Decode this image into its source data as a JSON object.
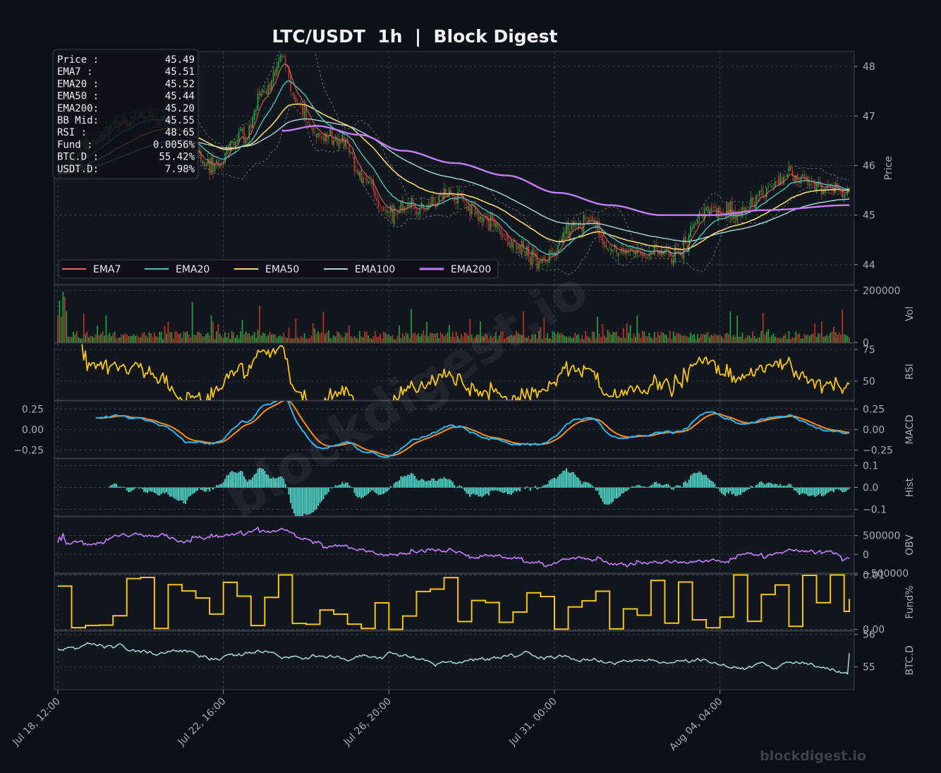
{
  "chart_data": {
    "type": "financial-multi-panel",
    "title": "LTC/USDT  1h  |  Block Digest",
    "watermark": "blockdigest.io",
    "footer": "blockdigest.io",
    "x_ticks": [
      "Jul 18, 12:00",
      "Jul 22, 16:00",
      "Jul 26, 20:00",
      "Jul 31, 00:00",
      "Aug 04, 04:00"
    ],
    "info_box": [
      {
        "label": "Price :",
        "value": "45.49"
      },
      {
        "label": "EMA7  :",
        "value": "45.51"
      },
      {
        "label": "EMA20 :",
        "value": "45.52"
      },
      {
        "label": "EMA50 :",
        "value": "45.44"
      },
      {
        "label": "EMA200:",
        "value": "45.20"
      },
      {
        "label": "BB Mid:",
        "value": "45.55"
      },
      {
        "label": "RSI   :",
        "value": "48.65"
      },
      {
        "label": "Fund  :",
        "value": "0.0056%"
      },
      {
        "label": "BTC.D :",
        "value": "55.42%"
      },
      {
        "label": "USDT.D:",
        "value": "7.98%"
      }
    ],
    "legend": [
      {
        "name": "EMA7",
        "color": "#e8676b"
      },
      {
        "name": "EMA20",
        "color": "#4fc3c0"
      },
      {
        "name": "EMA50",
        "color": "#f5d76e"
      },
      {
        "name": "EMA100",
        "color": "#a8d8dc"
      },
      {
        "name": "EMA200",
        "color": "#c77dff"
      }
    ],
    "panels": {
      "price": {
        "ylabel": "Price",
        "ylim": [
          43.6,
          48.3
        ],
        "ticks": [
          "44",
          "45",
          "46",
          "47",
          "48"
        ],
        "tick_values": [
          44,
          45,
          46,
          47,
          48
        ],
        "close_keypoints": [
          [
            0,
            45.9
          ],
          [
            15,
            46.4
          ],
          [
            40,
            46.9
          ],
          [
            60,
            47.0
          ],
          [
            75,
            46.3
          ],
          [
            90,
            46.0
          ],
          [
            108,
            46.6
          ],
          [
            120,
            47.5
          ],
          [
            130,
            48.1
          ],
          [
            140,
            47.2
          ],
          [
            150,
            46.6
          ],
          [
            165,
            46.5
          ],
          [
            180,
            45.6
          ],
          [
            190,
            45.0
          ],
          [
            210,
            45.2
          ],
          [
            230,
            45.4
          ],
          [
            250,
            44.9
          ],
          [
            265,
            44.4
          ],
          [
            280,
            44.0
          ],
          [
            300,
            44.8
          ],
          [
            310,
            44.9
          ],
          [
            320,
            44.3
          ],
          [
            340,
            44.2
          ],
          [
            360,
            44.3
          ],
          [
            375,
            45.1
          ],
          [
            395,
            45.0
          ],
          [
            410,
            45.5
          ],
          [
            425,
            45.8
          ],
          [
            440,
            45.6
          ],
          [
            459,
            45.49
          ]
        ],
        "ema200_keypoints": [
          [
            130,
            46.7
          ],
          [
            150,
            46.8
          ],
          [
            175,
            46.62
          ],
          [
            200,
            46.3
          ],
          [
            230,
            46.05
          ],
          [
            260,
            45.8
          ],
          [
            290,
            45.45
          ],
          [
            320,
            45.2
          ],
          [
            350,
            45.0
          ],
          [
            380,
            45.0
          ],
          [
            410,
            45.1
          ],
          [
            459,
            45.2
          ]
        ]
      },
      "volume": {
        "ylabel": "Vol",
        "ylim": [
          0,
          220000
        ],
        "ticks": [
          "0",
          "200000"
        ],
        "tick_values": [
          0,
          200000
        ]
      },
      "rsi": {
        "ylabel": "RSI",
        "ylim": [
          35,
          80
        ],
        "ticks": [
          "50",
          "75"
        ],
        "tick_values": [
          50,
          75
        ]
      },
      "macd": {
        "ylabel": "MACD",
        "ylim": [
          -0.35,
          0.35
        ],
        "ticks": [
          "−0.25",
          "0.00",
          "0.25"
        ],
        "tick_values": [
          -0.25,
          0,
          0.25
        ]
      },
      "hist": {
        "ylabel": "Hist",
        "ylim": [
          -0.13,
          0.13
        ],
        "ticks": [
          "−0.1",
          "0.0",
          "0.1"
        ],
        "tick_values": [
          -0.1,
          0,
          0.1
        ]
      },
      "obv": {
        "ylabel": "OBV",
        "ylim": [
          -500000,
          1000000
        ],
        "ticks": [
          "−500000",
          "0",
          "500000"
        ],
        "tick_values": [
          -500000,
          0,
          500000
        ]
      },
      "funding": {
        "ylabel": "Fund%",
        "ylim": [
          -0.0002,
          0.0102
        ],
        "ticks": [
          "0.00",
          "0.01"
        ],
        "tick_values": [
          0,
          0.01
        ]
      },
      "btcd": {
        "ylabel": "BTC.D",
        "ylim": [
          54.3,
          56.1
        ],
        "ticks": [
          "55",
          "56"
        ],
        "tick_values": [
          55,
          56
        ]
      }
    },
    "colors": {
      "up": "#26a641",
      "down": "#c0392b",
      "rsi": "#f5c518",
      "macd": "#29b6f6",
      "signal": "#ff8c1a",
      "hist": "#4fd1c5",
      "obv": "#c77dff",
      "funding": "#f5c518",
      "btcd": "#a8d8dc",
      "bb": "#8b9098"
    }
  }
}
